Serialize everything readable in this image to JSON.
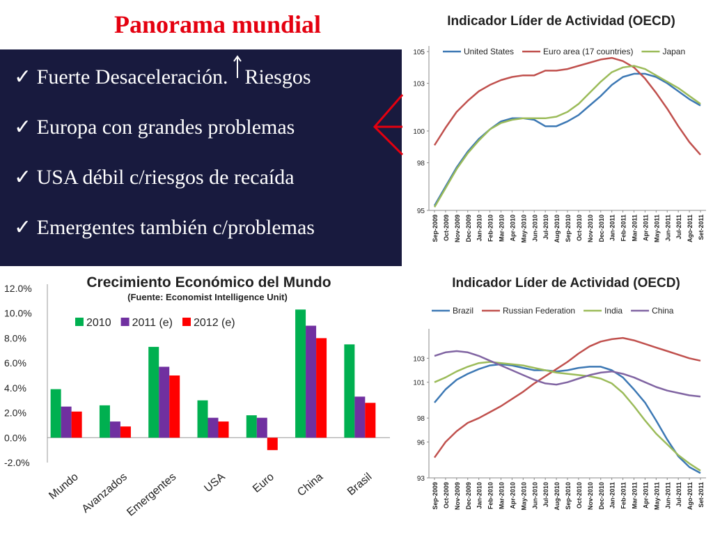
{
  "slide": {
    "title": "Panorama mundial",
    "title_color": "#e4000f",
    "check_icon": "check-mark-icon",
    "bullets": [
      {
        "text": "Fuerte Desaceleración.",
        "suffix": "Riesgos"
      },
      {
        "text": "Europa con grandes problemas"
      },
      {
        "text": "USA débil c/riesgos de recaída"
      },
      {
        "text": "Emergentes también c/problemas"
      }
    ]
  },
  "chart_data": [
    {
      "type": "line",
      "title": "Indicador Líder de Actividad (OECD)",
      "x": [
        "Sep-2009",
        "Oct-2009",
        "Nov-2009",
        "Dec-2009",
        "Jan-2010",
        "Feb-2010",
        "Mar-2010",
        "Apr-2010",
        "May-2010",
        "Jun-2010",
        "Jul-2010",
        "Aug-2010",
        "Sep-2010",
        "Oct-2010",
        "Nov-2010",
        "Dec-2010",
        "Jan-2011",
        "Feb-2011",
        "Mar-2011",
        "Apr-2011",
        "May-2011",
        "Jun-2011",
        "Jul-2011",
        "Ago-2011",
        "Set-2011"
      ],
      "yticks": [
        95,
        98,
        100,
        103,
        105
      ],
      "ylim": [
        95,
        105
      ],
      "series": [
        {
          "name": "United States",
          "color": "#3c78b4",
          "values": [
            95.3,
            96.5,
            97.7,
            98.7,
            99.5,
            100.1,
            100.6,
            100.8,
            100.8,
            100.7,
            100.3,
            100.3,
            100.6,
            101.0,
            101.6,
            102.2,
            102.9,
            103.4,
            103.6,
            103.6,
            103.4,
            103.0,
            102.5,
            102.0,
            101.6
          ]
        },
        {
          "name": "Euro area (17 countries)",
          "color": "#c0504d",
          "values": [
            99.1,
            100.2,
            101.2,
            101.9,
            102.5,
            102.9,
            103.2,
            103.4,
            103.5,
            103.5,
            103.8,
            103.8,
            103.9,
            104.1,
            104.3,
            104.5,
            104.6,
            104.4,
            104.0,
            103.3,
            102.4,
            101.4,
            100.3,
            99.3,
            98.5
          ]
        },
        {
          "name": "Japan",
          "color": "#9bbb59",
          "values": [
            95.2,
            96.4,
            97.6,
            98.6,
            99.4,
            100.1,
            100.5,
            100.7,
            100.8,
            100.8,
            100.8,
            100.9,
            101.2,
            101.7,
            102.4,
            103.1,
            103.7,
            104.0,
            104.1,
            103.9,
            103.5,
            103.1,
            102.7,
            102.2,
            101.7
          ]
        }
      ]
    },
    {
      "type": "bar",
      "title": "Crecimiento Económico del Mundo",
      "subtitle": "(Fuente: Economist Intelligence Unit)",
      "categories": [
        "Mundo",
        "Avanzados",
        "Emergentes",
        "USA",
        "Euro",
        "China",
        "Brasil"
      ],
      "yticks": [
        "12.0%",
        "10.0%",
        "8.0%",
        "6.0%",
        "4.0%",
        "2.0%",
        "0.0%",
        "-2.0%"
      ],
      "ylim": [
        -2,
        12
      ],
      "series": [
        {
          "name": "2010",
          "color": "#00b050",
          "values": [
            3.9,
            2.6,
            7.3,
            3.0,
            1.8,
            10.3,
            7.5
          ]
        },
        {
          "name": "2011 (e)",
          "color": "#7030a0",
          "values": [
            2.5,
            1.3,
            5.7,
            1.6,
            1.6,
            9.0,
            3.3
          ]
        },
        {
          "name": "2012 (e)",
          "color": "#ff0000",
          "values": [
            2.1,
            0.9,
            5.0,
            1.3,
            -1.0,
            8.0,
            2.8
          ]
        }
      ]
    },
    {
      "type": "line",
      "title": "Indicador Líder de Actividad (OECD)",
      "x": [
        "Sep-2009",
        "Oct-2009",
        "Nov-2009",
        "Dec-2009",
        "Jan-2010",
        "Feb-2010",
        "Mar-2010",
        "Apr-2010",
        "May-2010",
        "Jun-2010",
        "Jul-2010",
        "Aug-2010",
        "Sep-2010",
        "Oct-2010",
        "Nov-2010",
        "Dec-2010",
        "Jan-2011",
        "Feb-2011",
        "Mar-2011",
        "Apr-2011",
        "May-2011",
        "Jun-2011",
        "Jul-2011",
        "Ago-2011",
        "Set-2011"
      ],
      "yticks": [
        93,
        96,
        98,
        101,
        103
      ],
      "ylim": [
        93,
        105
      ],
      "series": [
        {
          "name": "Brazil",
          "color": "#3c78b4",
          "values": [
            99.3,
            100.4,
            101.2,
            101.7,
            102.1,
            102.4,
            102.5,
            102.4,
            102.2,
            102.0,
            102.0,
            101.9,
            102.0,
            102.2,
            102.3,
            102.3,
            102.0,
            101.4,
            100.4,
            99.3,
            97.8,
            96.2,
            94.8,
            93.9,
            93.4
          ]
        },
        {
          "name": "Russian Federation",
          "color": "#c0504d",
          "values": [
            94.7,
            96.0,
            96.9,
            97.6,
            98.0,
            98.5,
            99.0,
            99.6,
            100.2,
            100.9,
            101.5,
            102.1,
            102.7,
            103.4,
            104.0,
            104.4,
            104.6,
            104.7,
            104.5,
            104.2,
            103.9,
            103.6,
            103.3,
            103.0,
            102.8
          ]
        },
        {
          "name": "India",
          "color": "#9bbb59",
          "values": [
            101.0,
            101.4,
            101.9,
            102.3,
            102.6,
            102.7,
            102.6,
            102.5,
            102.4,
            102.2,
            102.0,
            101.8,
            101.7,
            101.6,
            101.5,
            101.3,
            100.9,
            100.1,
            99.0,
            97.8,
            96.7,
            95.8,
            94.9,
            94.2,
            93.6
          ]
        },
        {
          "name": "China",
          "color": "#8064a2",
          "values": [
            103.2,
            103.5,
            103.6,
            103.5,
            103.2,
            102.8,
            102.4,
            102.0,
            101.6,
            101.2,
            100.9,
            100.8,
            101.0,
            101.3,
            101.6,
            101.8,
            101.9,
            101.7,
            101.4,
            101.0,
            100.6,
            100.3,
            100.1,
            99.9,
            99.8
          ]
        }
      ]
    }
  ]
}
